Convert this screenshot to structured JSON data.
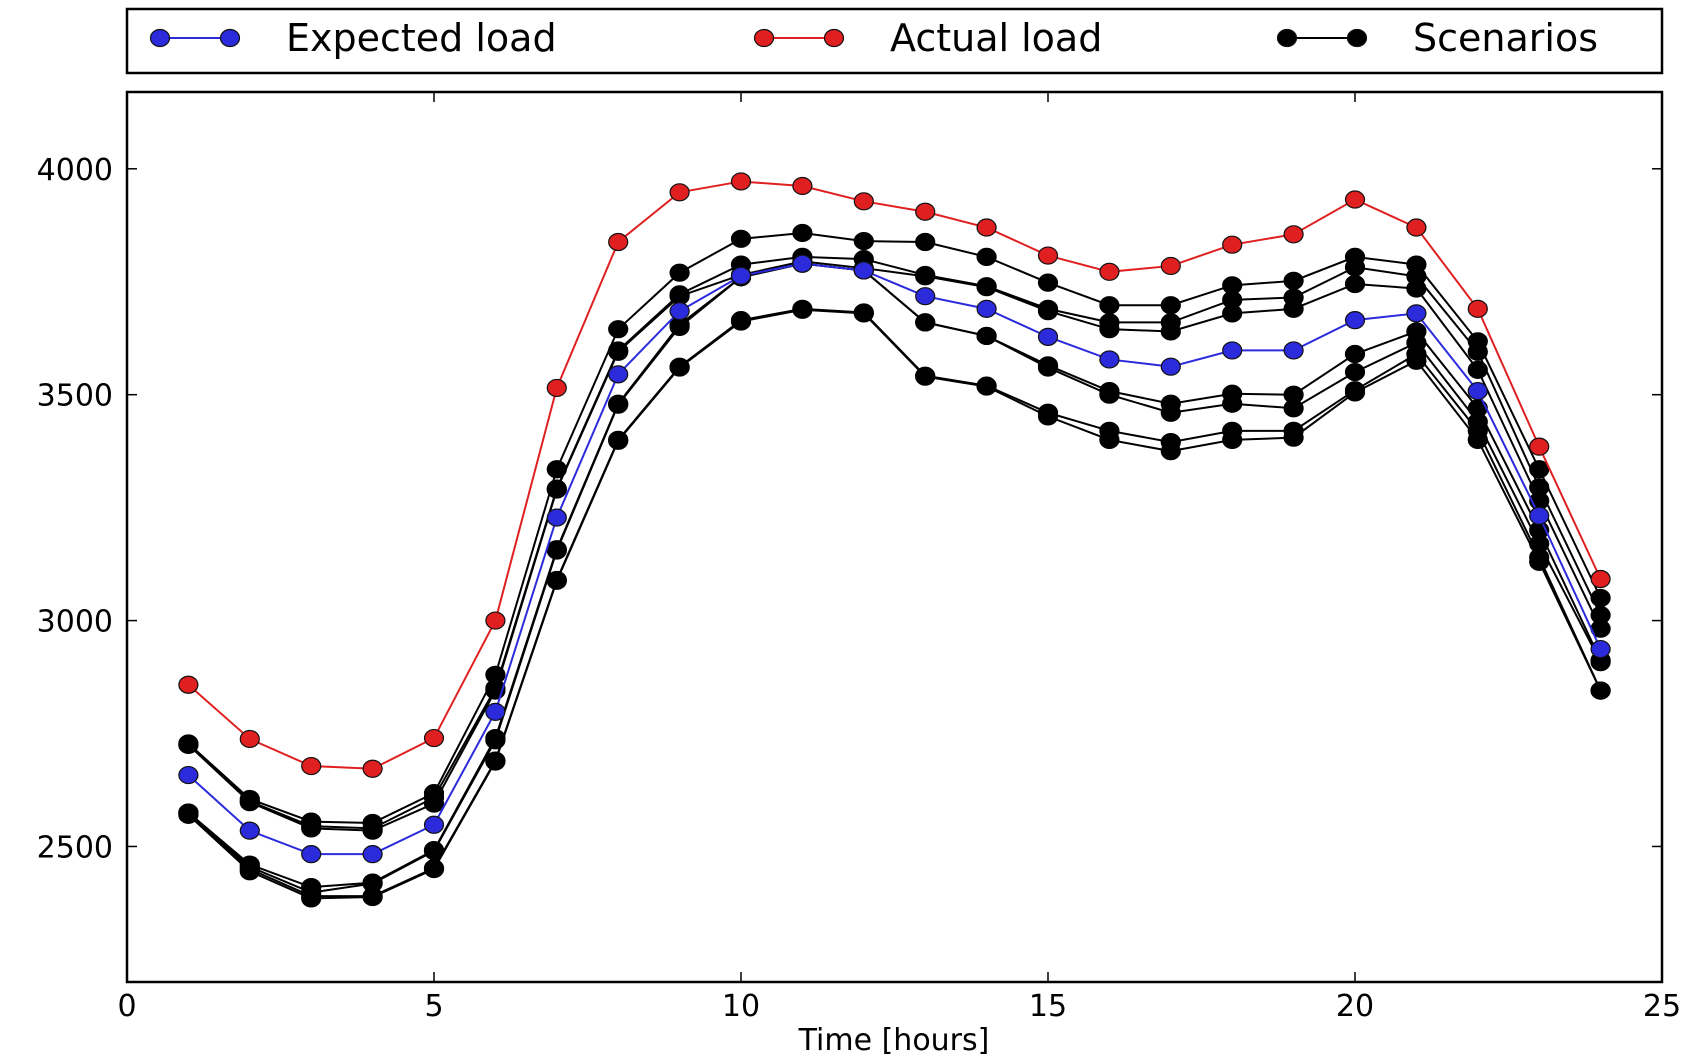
{
  "chart_data": {
    "type": "line",
    "title": "",
    "xlabel": "Time [hours]",
    "ylabel": "",
    "xlim": [
      0,
      25
    ],
    "ylim": [
      2200,
      4170
    ],
    "xticks": [
      0,
      5,
      10,
      15,
      20,
      25
    ],
    "yticks": [
      2500,
      3000,
      3500,
      4000
    ],
    "grid": false,
    "legend_position": "top, outside plot",
    "x": [
      1,
      2,
      3,
      4,
      5,
      6,
      7,
      8,
      9,
      10,
      11,
      12,
      13,
      14,
      15,
      16,
      17,
      18,
      19,
      20,
      21,
      22,
      23,
      24
    ],
    "series": [
      {
        "name": "Expected load",
        "color": "#2b2bdc",
        "legend": true,
        "values": [
          2658,
          2535,
          2483,
          2483,
          2548,
          2798,
          3228,
          3545,
          3685,
          3763,
          3790,
          3775,
          3718,
          3690,
          3628,
          3578,
          3562,
          3598,
          3598,
          3665,
          3680,
          3508,
          3232,
          2937
        ]
      },
      {
        "name": "Actual load",
        "color": "#e02020",
        "legend": true,
        "values": [
          2858,
          2738,
          2678,
          2672,
          2740,
          3000,
          3515,
          3838,
          3948,
          3972,
          3962,
          3928,
          3905,
          3870,
          3808,
          3772,
          3785,
          3832,
          3855,
          3932,
          3870,
          3690,
          3385,
          3092
        ]
      },
      {
        "name": "Scenarios",
        "color": "#000000",
        "legend": true,
        "values": [
          2728,
          2605,
          2555,
          2552,
          2618,
          2880,
          3335,
          3645,
          3770,
          3845,
          3858,
          3840,
          3838,
          3805,
          3748,
          3698,
          3698,
          3742,
          3752,
          3805,
          3788,
          3618,
          3335,
          3050
        ]
      },
      {
        "name": "",
        "color": "#000000",
        "legend": false,
        "values": [
          2725,
          2600,
          2545,
          2540,
          2608,
          2850,
          3292,
          3598,
          3722,
          3788,
          3805,
          3800,
          3765,
          3740,
          3690,
          3660,
          3660,
          3710,
          3715,
          3782,
          3762,
          3595,
          3295,
          3012
        ]
      },
      {
        "name": "",
        "color": "#000000",
        "legend": false,
        "values": [
          2725,
          2598,
          2540,
          2535,
          2595,
          2845,
          3290,
          3595,
          3718,
          3765,
          3795,
          3780,
          3762,
          3738,
          3685,
          3645,
          3640,
          3680,
          3690,
          3745,
          3735,
          3555,
          3265,
          2982
        ]
      },
      {
        "name": "",
        "color": "#000000",
        "legend": false,
        "values": [
          2575,
          2460,
          2410,
          2420,
          2492,
          2740,
          3158,
          3480,
          3655,
          3760,
          3790,
          3775,
          3660,
          3630,
          3565,
          3508,
          3480,
          3502,
          3500,
          3590,
          3640,
          3470,
          3200,
          2912
        ]
      },
      {
        "name": "",
        "color": "#000000",
        "legend": false,
        "values": [
          2575,
          2455,
          2398,
          2418,
          2490,
          2735,
          3155,
          3478,
          3650,
          3760,
          3790,
          3775,
          3660,
          3630,
          3560,
          3500,
          3460,
          3480,
          3470,
          3550,
          3615,
          3440,
          3170,
          2908
        ]
      },
      {
        "name": "",
        "color": "#000000",
        "legend": false,
        "values": [
          2572,
          2450,
          2390,
          2390,
          2452,
          2690,
          3090,
          3400,
          3562,
          3665,
          3690,
          3682,
          3542,
          3520,
          3460,
          3420,
          3395,
          3420,
          3420,
          3510,
          3590,
          3420,
          3140,
          2845
        ]
      },
      {
        "name": "",
        "color": "#000000",
        "legend": false,
        "values": [
          2570,
          2445,
          2385,
          2388,
          2450,
          2688,
          3088,
          3398,
          3560,
          3662,
          3688,
          3680,
          3540,
          3518,
          3452,
          3400,
          3375,
          3400,
          3405,
          3505,
          3575,
          3400,
          3130,
          2845
        ]
      }
    ]
  }
}
